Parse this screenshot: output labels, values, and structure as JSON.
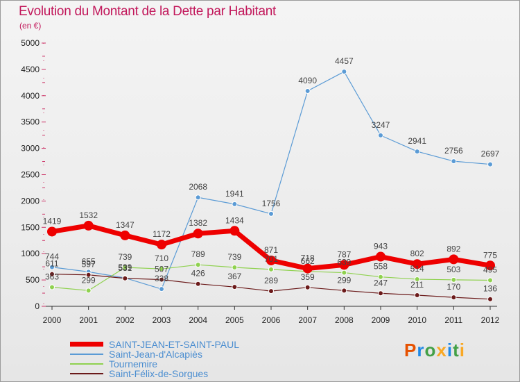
{
  "title": "Evolution du Montant de la Dette par Habitant",
  "unit": "(en €)",
  "logo": {
    "text": "Proxiti",
    "letters": [
      "P",
      "r",
      "o",
      "x",
      "i",
      "t",
      "i"
    ],
    "colors": [
      "#e65100",
      "#1e88e5",
      "#43a047",
      "#f9a825",
      "#1e88e5",
      "#43a047",
      "#f9a825"
    ]
  },
  "chart_data": {
    "type": "line",
    "title": "Evolution du Montant de la Dette par Habitant",
    "subtitle": "(en €)",
    "xlabel": "",
    "ylabel": "",
    "ylim": [
      0,
      5000
    ],
    "y_ticks": [
      "0",
      "500",
      "1000",
      "1500",
      "2000",
      "2500",
      "3000",
      "3500",
      "4000",
      "4500",
      "5000"
    ],
    "x": [
      "2000",
      "2001",
      "2002",
      "2003",
      "2004",
      "2005",
      "2006",
      "2007",
      "2008",
      "2009",
      "2010",
      "2011",
      "2012"
    ],
    "grid": false,
    "legend_position": "bottom-left",
    "series": [
      {
        "name": "SAINT-JEAN-ET-SAINT-PAUL",
        "color": "#ee0000",
        "values": [
          1419,
          1532,
          1347,
          1172,
          1382,
          1434,
          871,
          718,
          787,
          943,
          802,
          892,
          775
        ],
        "labels": [
          "1419",
          "1532",
          "1347",
          "1172",
          "1382",
          "1434",
          "871",
          "718",
          "787",
          "943",
          "802",
          "892",
          "775"
        ]
      },
      {
        "name": "Saint-Jean-d'Alcapiès",
        "color": "#5b9bd5",
        "values": [
          744,
          655,
          539,
          328,
          2068,
          1941,
          1756,
          4090,
          4457,
          3247,
          2941,
          2756,
          2697
        ],
        "labels": [
          "744",
          "655",
          "539",
          "328",
          "2068",
          "1941",
          "1756",
          "4090",
          "4457",
          "3247",
          "2941",
          "2756",
          "2697"
        ]
      },
      {
        "name": "Tournemire",
        "color": "#8fd14f",
        "values": [
          363,
          299,
          739,
          710,
          789,
          739,
          701,
          662,
          639,
          558,
          514,
          503,
          495
        ],
        "labels": [
          "363",
          "299",
          "739",
          "710",
          "789",
          "739",
          "701",
          "662",
          "639",
          "558",
          "514",
          "503",
          "495"
        ]
      },
      {
        "name": "Saint-Félix-de-Sorgues",
        "color": "#6b1a1a",
        "values": [
          611,
          597,
          531,
          507,
          426,
          367,
          289,
          359,
          299,
          247,
          211,
          170,
          136
        ],
        "labels": [
          "611",
          "597",
          "531",
          "507",
          "426",
          "367",
          "289",
          "359",
          "299",
          "247",
          "211",
          "170",
          "136"
        ]
      }
    ]
  }
}
